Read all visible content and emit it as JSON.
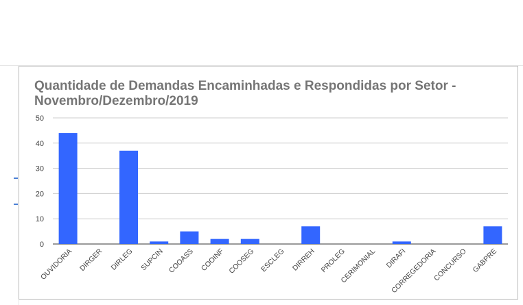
{
  "chart_data": {
    "type": "bar",
    "title_line1": "Quantidade de Demandas Encaminhadas e Respondidas por Setor -",
    "title_line2": "Novembro/Dezembro/2019",
    "xlabel": "",
    "ylabel": "",
    "ylim": [
      0,
      50
    ],
    "yticks": [
      0,
      10,
      20,
      30,
      40,
      50
    ],
    "grid": true,
    "legend": "none",
    "bar_color": "#3366ff",
    "categories": [
      "OUVIDORIA",
      "DIRGER",
      "DIRLEG",
      "SUPCIN",
      "COOASS",
      "COOINF",
      "COOSEG",
      "ESCLEG",
      "DIRREH",
      "PROLEG",
      "CERIMONIAL",
      "DIRAFI",
      "CORREGEDORIA",
      "CONCURSO",
      "GABPRE"
    ],
    "values": [
      44,
      0,
      37,
      1,
      5,
      2,
      2,
      0,
      7,
      0,
      0,
      1,
      0,
      0,
      7
    ]
  }
}
